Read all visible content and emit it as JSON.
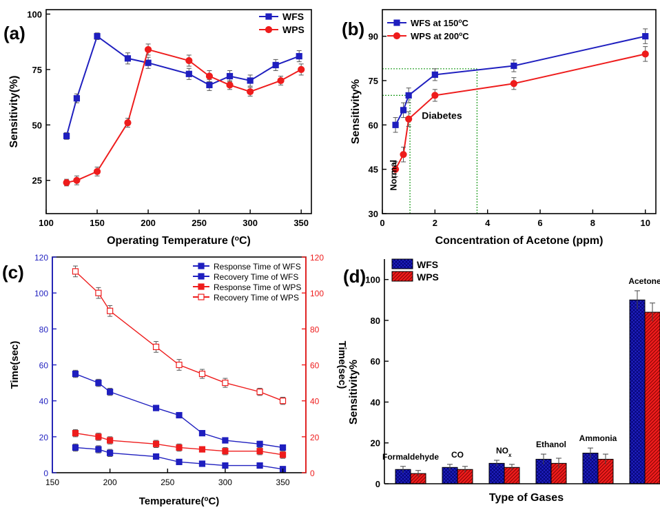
{
  "panels": {
    "a": {
      "label": "(a)"
    },
    "b": {
      "label": "(b)"
    },
    "c": {
      "label": "(c)"
    },
    "d": {
      "label": "(d)"
    }
  },
  "colors": {
    "blue": "#1f1fbf",
    "red": "#ee1c1c",
    "green": "#1a9a1a",
    "axis": "#000000"
  },
  "chart_data": [
    {
      "id": "a",
      "type": "line",
      "xlabel": "Operating Temperature (°C)",
      "ylabel": "Sensitivity(%)",
      "xlim": [
        100,
        360
      ],
      "ylim": [
        10,
        102
      ],
      "xticks": [
        100,
        150,
        200,
        250,
        300,
        350
      ],
      "yticks": [
        25,
        50,
        75,
        100
      ],
      "legend_position": "top-right",
      "series": [
        {
          "name": "WFS",
          "color": "#1f1fbf",
          "marker": "square",
          "x": [
            120,
            130,
            150,
            180,
            200,
            240,
            260,
            280,
            300,
            325,
            348
          ],
          "y": [
            45,
            62,
            90,
            80,
            78,
            73,
            68,
            72,
            70,
            77,
            81
          ],
          "err": [
            1.5,
            2,
            1.5,
            2.5,
            2.5,
            2.5,
            2.5,
            2.5,
            2.5,
            2.5,
            2.5
          ]
        },
        {
          "name": "WPS",
          "color": "#ee1c1c",
          "marker": "circle",
          "x": [
            120,
            130,
            150,
            180,
            200,
            240,
            260,
            280,
            300,
            330,
            350
          ],
          "y": [
            24,
            25,
            29,
            51,
            84,
            79,
            72,
            68,
            65,
            70,
            75
          ],
          "err": [
            1.5,
            2,
            2,
            2,
            2.5,
            2.5,
            2.5,
            2,
            2,
            2,
            2.5
          ]
        }
      ]
    },
    {
      "id": "b",
      "type": "line",
      "xlabel": "Concentration of Acetone (ppm)",
      "ylabel": "Sensitivity%",
      "xlim": [
        0,
        10.4
      ],
      "ylim": [
        30,
        99
      ],
      "xticks": [
        0,
        2,
        4,
        6,
        8,
        10
      ],
      "yticks": [
        30,
        45,
        60,
        75,
        90
      ],
      "legend_position": "top-left",
      "series": [
        {
          "name": "WFS at 150°C",
          "color": "#1f1fbf",
          "marker": "square",
          "x": [
            0.5,
            0.8,
            1,
            2,
            5,
            10
          ],
          "y": [
            60,
            65,
            70,
            77,
            80,
            90
          ],
          "err": [
            2.5,
            2.5,
            2.5,
            2,
            2,
            2.5
          ]
        },
        {
          "name": "WPS at 200°C",
          "color": "#ee1c1c",
          "marker": "circle",
          "x": [
            0.5,
            0.8,
            1,
            2,
            5,
            10
          ],
          "y": [
            45,
            50,
            62,
            70,
            74,
            84
          ],
          "err": [
            2.5,
            2.5,
            2.5,
            2,
            2,
            2.5
          ]
        }
      ],
      "annotations": [
        {
          "text": "Diabetes",
          "x": 1.5,
          "y": 62
        },
        {
          "text": "Normal",
          "x": 0.75,
          "y": 43,
          "rotated": true
        }
      ],
      "guides": [
        {
          "type": "h",
          "y": 79,
          "x0": 0,
          "x1": 3.6
        },
        {
          "type": "h",
          "y": 70,
          "x0": 0,
          "x1": 1.05
        },
        {
          "type": "v",
          "x": 1.05,
          "y0": 30,
          "y1": 70
        },
        {
          "type": "v",
          "x": 3.6,
          "y0": 30,
          "y1": 79
        }
      ]
    },
    {
      "id": "c",
      "type": "line",
      "xlabel": "Temperature(°C)",
      "ylabel": "Time(sec)",
      "y2label": "Time(sec)",
      "xlim": [
        150,
        370
      ],
      "ylim": [
        0,
        120
      ],
      "xticks": [
        150,
        200,
        250,
        300,
        350
      ],
      "yticks": [
        0,
        20,
        40,
        60,
        80,
        100,
        120
      ],
      "legend_position": "top-right",
      "series": [
        {
          "name": "Response Time of WFS",
          "color": "#1f1fbf",
          "marker": "square",
          "filled": true,
          "x": [
            170,
            190,
            200,
            240,
            260,
            280,
            300,
            330,
            350
          ],
          "y": [
            14,
            13,
            11,
            9,
            6,
            5,
            4,
            4,
            2
          ],
          "err": [
            2,
            2,
            2,
            1.5,
            1.5,
            1,
            1,
            1,
            1.5
          ]
        },
        {
          "name": "Recovery Time of WFS",
          "color": "#1f1fbf",
          "marker": "square",
          "filled": true,
          "x": [
            170,
            190,
            200,
            240,
            260,
            280,
            300,
            330,
            350
          ],
          "y": [
            55,
            50,
            45,
            36,
            32,
            22,
            18,
            16,
            14
          ],
          "err": [
            2,
            2,
            2,
            1.5,
            1.5,
            1,
            1,
            1.5,
            1.5
          ]
        },
        {
          "name": "Response Time of WPS",
          "color": "#ee1c1c",
          "marker": "square",
          "filled": true,
          "x": [
            170,
            190,
            200,
            240,
            260,
            280,
            300,
            330,
            350
          ],
          "y": [
            22,
            20,
            18,
            16,
            14,
            13,
            12,
            12,
            10
          ],
          "err": [
            2,
            2,
            2,
            2,
            2,
            1.5,
            2,
            2,
            2
          ]
        },
        {
          "name": "Recovery Time of WPS",
          "color": "#ee1c1c",
          "marker": "square",
          "filled": false,
          "x": [
            170,
            190,
            200,
            240,
            260,
            280,
            300,
            330,
            350
          ],
          "y": [
            112,
            100,
            90,
            70,
            60,
            55,
            50,
            45,
            40
          ],
          "err": [
            3,
            3,
            3,
            3,
            3,
            2.5,
            2.5,
            2,
            2
          ]
        }
      ]
    },
    {
      "id": "d",
      "type": "bar",
      "xlabel": "Type of Gases",
      "ylabel": "Sensitivity%",
      "ylim": [
        0,
        110
      ],
      "yticks": [
        0,
        20,
        40,
        60,
        80,
        100
      ],
      "legend_position": "top-left",
      "categories": [
        "Formaldehyde",
        "CO",
        "NOx",
        "Ethanol",
        "Ammonia",
        "Acetone"
      ],
      "series": [
        {
          "name": "WFS",
          "color": "#1f1fbf",
          "hatch": "cross",
          "values": [
            7,
            8,
            10,
            12,
            15,
            90
          ],
          "err": [
            1.5,
            1.5,
            1.5,
            2.5,
            2.5,
            4.5
          ]
        },
        {
          "name": "WPS",
          "color": "#ee1c1c",
          "hatch": "diagonal",
          "values": [
            5,
            7,
            8,
            10,
            12,
            84
          ],
          "err": [
            1.5,
            1.5,
            1.5,
            2.5,
            2.5,
            4.5
          ]
        }
      ]
    }
  ]
}
